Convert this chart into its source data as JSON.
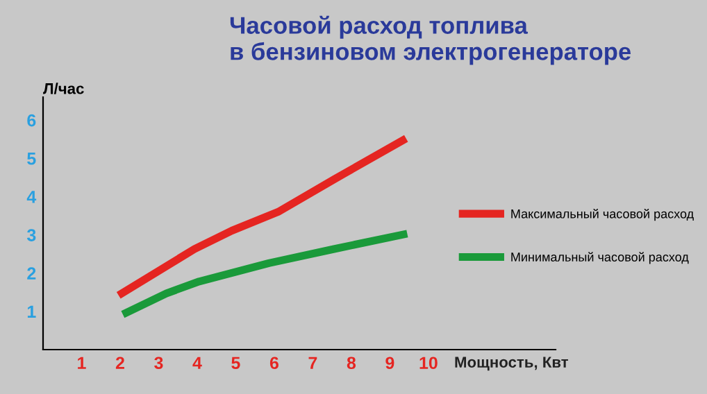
{
  "chart_data": {
    "type": "line",
    "title": "Часовой расход топлива\nв бензиновом электрогенераторе",
    "xlabel": "Мощность, Квт",
    "ylabel": "Л/час",
    "xlim": [
      0,
      13.3
    ],
    "xticks": [
      1,
      2,
      3,
      4,
      5,
      6,
      7,
      8,
      9,
      10
    ],
    "ylim": [
      0,
      6.6
    ],
    "yticks": [
      1,
      2,
      3,
      4,
      5,
      6
    ],
    "series": [
      {
        "name": "Максимальный часовой расход",
        "color": "#e52521",
        "x": [
          1.96,
          3.93,
          4.9,
          6.1,
          7.55,
          9.42
        ],
        "values": [
          1.42,
          2.63,
          3.11,
          3.6,
          4.45,
          5.52
        ]
      },
      {
        "name": "Минимальный часовой расход",
        "color": "#1a9a3a",
        "x": [
          2.07,
          3.2,
          4.05,
          5.86,
          7.55,
          9.45
        ],
        "values": [
          0.92,
          1.47,
          1.78,
          2.26,
          2.63,
          3.03
        ]
      }
    ],
    "grid": false,
    "legend": "right",
    "marker": "none",
    "line_style": "solid"
  }
}
